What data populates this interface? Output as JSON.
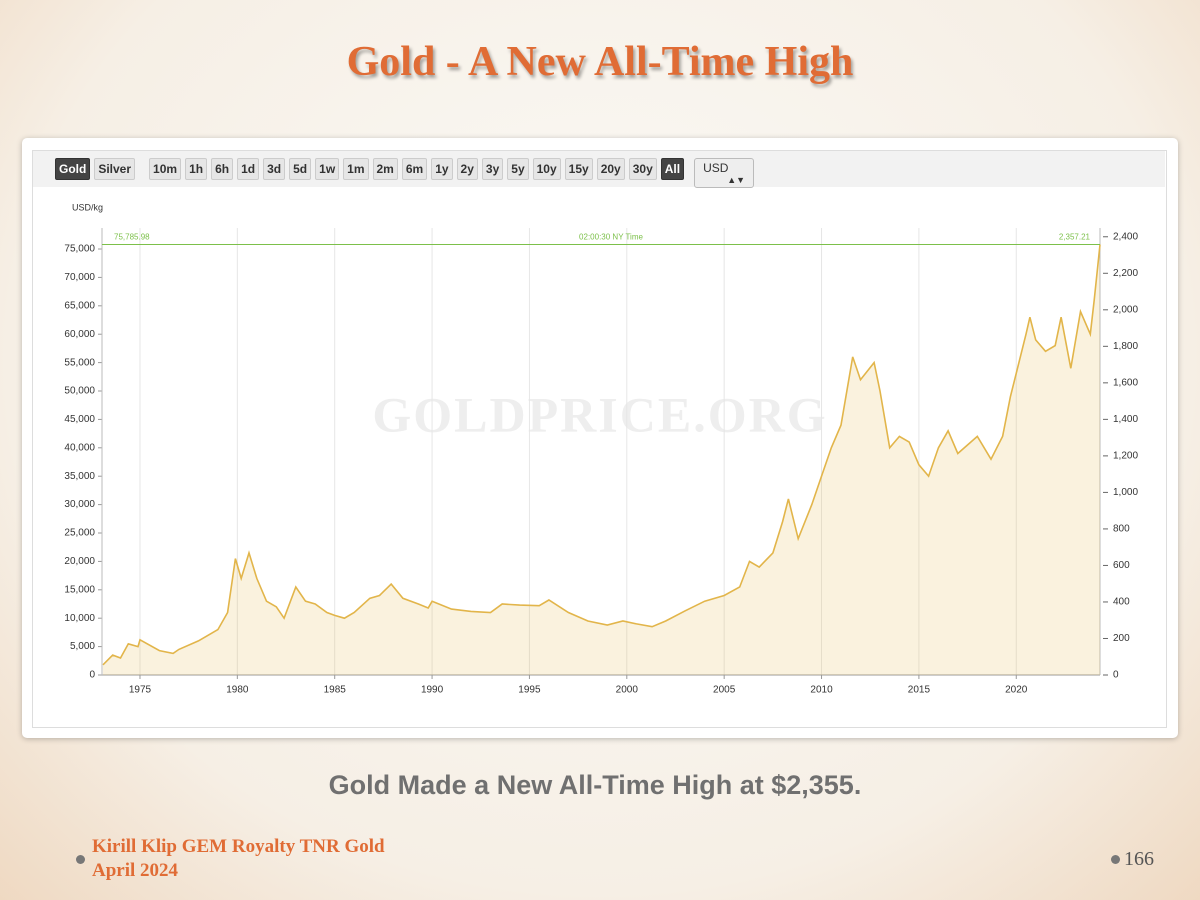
{
  "slide": {
    "title": "Gold - A New All-Time High",
    "caption": "Gold Made a New All-Time High at $2,355.",
    "footer": [
      "Kirill Klip GEM Royalty TNR Gold",
      "April 2024"
    ],
    "page_number": "166"
  },
  "toolbar": {
    "metals": [
      "Gold",
      "Silver"
    ],
    "ranges": [
      "10m",
      "1h",
      "6h",
      "1d",
      "3d",
      "5d",
      "1w",
      "1m",
      "2m",
      "6m",
      "1y",
      "2y",
      "3y",
      "5y",
      "10y",
      "15y",
      "20y",
      "30y",
      "All"
    ],
    "selected": [
      "Gold",
      "All"
    ],
    "currency": "USD"
  },
  "chart_data": {
    "type": "line",
    "y_axis_label": "USD/kg",
    "watermark": "GOLDPRICE.ORG",
    "x": [
      1973.1,
      1973.6,
      1974.0,
      1974.4,
      1974.9,
      1975.0,
      1976.0,
      1976.7,
      1977.0,
      1978.0,
      1979.0,
      1979.5,
      1979.9,
      1980.2,
      1980.6,
      1981.0,
      1981.5,
      1982.0,
      1982.4,
      1983.0,
      1983.5,
      1984.0,
      1984.6,
      1985.0,
      1985.5,
      1986.0,
      1986.8,
      1987.3,
      1987.9,
      1988.5,
      1989.3,
      1989.8,
      1990.0,
      1991.0,
      1992.0,
      1993.0,
      1993.6,
      1994.5,
      1995.5,
      1996.0,
      1997.0,
      1998.0,
      1999.0,
      1999.8,
      2000.5,
      2001.3,
      2002.0,
      2003.0,
      2004.0,
      2005.0,
      2005.8,
      2006.3,
      2006.8,
      2007.5,
      2008.0,
      2008.3,
      2008.8,
      2009.5,
      2010.0,
      2010.5,
      2011.0,
      2011.6,
      2012.0,
      2012.7,
      2013.0,
      2013.5,
      2014.0,
      2014.5,
      2015.0,
      2015.5,
      2016.0,
      2016.5,
      2017.0,
      2018.0,
      2018.7,
      2019.3,
      2019.7,
      2020.5,
      2020.7,
      2021.0,
      2021.5,
      2022.0,
      2022.3,
      2022.8,
      2023.3,
      2023.8,
      2024.0,
      2024.3
    ],
    "series": [
      {
        "color": "#e2b54a",
        "values": [
          1800,
          3500,
          3000,
          5500,
          5000,
          6200,
          4300,
          3800,
          4500,
          6000,
          8000,
          11000,
          20500,
          17000,
          21500,
          17000,
          13000,
          12000,
          10000,
          15500,
          13000,
          12500,
          11000,
          10500,
          10000,
          11000,
          13500,
          14000,
          16000,
          13500,
          12500,
          11800,
          13000,
          11600,
          11200,
          11000,
          12500,
          12300,
          12200,
          13200,
          11000,
          9500,
          8800,
          9500,
          9000,
          8500,
          9500,
          11300,
          13000,
          14000,
          15500,
          20000,
          19000,
          21500,
          27000,
          31000,
          24000,
          30000,
          35000,
          40000,
          44000,
          56000,
          52000,
          55000,
          50000,
          40000,
          42000,
          41000,
          37000,
          35000,
          40000,
          43000,
          39000,
          42000,
          38000,
          42000,
          49000,
          60000,
          63000,
          59000,
          57000,
          58000,
          63000,
          54000,
          64000,
          60000,
          66000,
          75786
        ]
      }
    ],
    "xlim": [
      1973.05,
      2024.3
    ],
    "xticks": [
      1975,
      1980,
      1985,
      1990,
      1995,
      2000,
      2005,
      2010,
      2015,
      2020
    ],
    "ylim": [
      0,
      78700
    ],
    "yticks": [
      0,
      {
        "value": 5000,
        "label": "5,000"
      },
      {
        "value": 10000,
        "label": "10,000"
      },
      {
        "value": 15000,
        "label": "15,000"
      },
      {
        "value": 20000,
        "label": "20,000"
      },
      {
        "value": 25000,
        "label": "25,000"
      },
      {
        "value": 30000,
        "label": "30,000"
      },
      {
        "value": 35000,
        "label": "35,000"
      },
      {
        "value": 40000,
        "label": "40,000"
      },
      {
        "value": 45000,
        "label": "45,000"
      },
      {
        "value": 50000,
        "label": "50,000"
      },
      {
        "value": 55000,
        "label": "55,000"
      },
      {
        "value": 60000,
        "label": "60,000"
      },
      {
        "value": 65000,
        "label": "65,000"
      },
      {
        "value": 70000,
        "label": "70,000"
      },
      {
        "value": 75000,
        "label": "75,000"
      }
    ],
    "y2lim": [
      0,
      2448
    ],
    "y2ticks": [
      0,
      200,
      400,
      600,
      800,
      {
        "value": 1000,
        "label": "1,000"
      },
      {
        "value": 1200,
        "label": "1,200"
      },
      {
        "value": 1400,
        "label": "1,400"
      },
      {
        "value": 1600,
        "label": "1,600"
      },
      {
        "value": 1800,
        "label": "1,800"
      },
      {
        "value": 2000,
        "label": "2,000"
      },
      {
        "value": 2200,
        "label": "2,200"
      },
      {
        "value": 2400,
        "label": "2,400"
      }
    ],
    "grid": "x",
    "area": true,
    "reference_line": {
      "value": 75785.98,
      "color": "#7cc04a",
      "label": "75,785.98",
      "time_label": "02:00:30 NY Time",
      "right_label": "2,357.21"
    }
  }
}
